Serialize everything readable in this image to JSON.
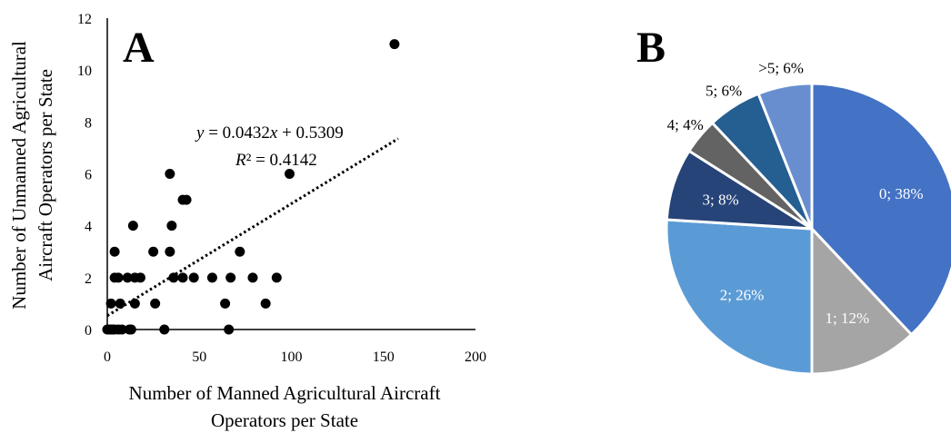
{
  "chart_data": [
    {
      "type": "scatter",
      "panel_label": "A",
      "xlabel": [
        "Number of Manned Agricultural Aircraft",
        "Operators per State"
      ],
      "ylabel": [
        "Number of Unmanned Agricultural",
        "Aircraft Operators per State"
      ],
      "xlim": [
        0,
        200
      ],
      "ylim": [
        0,
        12
      ],
      "xticks": [
        "0",
        "50",
        "100",
        "150",
        "200"
      ],
      "yticks": [
        "0",
        "2",
        "4",
        "6",
        "8",
        "10",
        "12"
      ],
      "trendline": {
        "slope": 0.0432,
        "intercept": 0.5309,
        "x_range": [
          0,
          158
        ],
        "equation": {
          "y": "y",
          "eq_sign": " = 0.0432",
          "x": "x",
          "rest": " + 0.5309"
        },
        "r2": {
          "r": "R",
          "sq": "²",
          "rest": " = 0.4142"
        }
      },
      "points": [
        {
          "x": 0,
          "y": 0
        },
        {
          "x": 1,
          "y": 0
        },
        {
          "x": 2,
          "y": 0
        },
        {
          "x": 3,
          "y": 0
        },
        {
          "x": 4,
          "y": 0
        },
        {
          "x": 6,
          "y": 0
        },
        {
          "x": 8,
          "y": 0
        },
        {
          "x": 12,
          "y": 0
        },
        {
          "x": 13,
          "y": 0
        },
        {
          "x": 31,
          "y": 0
        },
        {
          "x": 66,
          "y": 0
        },
        {
          "x": 2,
          "y": 1
        },
        {
          "x": 7,
          "y": 1
        },
        {
          "x": 15,
          "y": 1
        },
        {
          "x": 26,
          "y": 1
        },
        {
          "x": 64,
          "y": 1
        },
        {
          "x": 86,
          "y": 1
        },
        {
          "x": 4,
          "y": 2
        },
        {
          "x": 6,
          "y": 2
        },
        {
          "x": 11,
          "y": 2
        },
        {
          "x": 15,
          "y": 2
        },
        {
          "x": 18,
          "y": 2
        },
        {
          "x": 36,
          "y": 2
        },
        {
          "x": 41,
          "y": 2
        },
        {
          "x": 47,
          "y": 2
        },
        {
          "x": 57,
          "y": 2
        },
        {
          "x": 67,
          "y": 2
        },
        {
          "x": 79,
          "y": 2
        },
        {
          "x": 92,
          "y": 2
        },
        {
          "x": 4,
          "y": 3
        },
        {
          "x": 25,
          "y": 3
        },
        {
          "x": 34,
          "y": 3
        },
        {
          "x": 72,
          "y": 3
        },
        {
          "x": 14,
          "y": 4
        },
        {
          "x": 35,
          "y": 4
        },
        {
          "x": 41,
          "y": 5
        },
        {
          "x": 43,
          "y": 5
        },
        {
          "x": 34,
          "y": 6
        },
        {
          "x": 99,
          "y": 6
        },
        {
          "x": 156,
          "y": 11
        }
      ]
    },
    {
      "type": "pie",
      "panel_label": "B",
      "slices": [
        {
          "label": "0; 38%",
          "value": 38,
          "color": "#4472C4",
          "label_color": "#ffffff"
        },
        {
          "label": "1; 12%",
          "value": 12,
          "color": "#A5A5A5",
          "label_color": "#ffffff"
        },
        {
          "label": "2; 26%",
          "value": 26,
          "color": "#5B9BD5",
          "label_color": "#ffffff"
        },
        {
          "label": "3; 8%",
          "value": 8,
          "color": "#264478",
          "label_color": "#ffffff"
        },
        {
          "label": "4; 4%",
          "value": 4,
          "color": "#636363",
          "label_color": "#000000"
        },
        {
          "label": "5; 6%",
          "value": 6,
          "color": "#255E91",
          "label_color": "#000000"
        },
        {
          "label": ">5; 6%",
          "value": 6,
          "color": "#698ED0",
          "label_color": "#000000"
        }
      ]
    }
  ]
}
